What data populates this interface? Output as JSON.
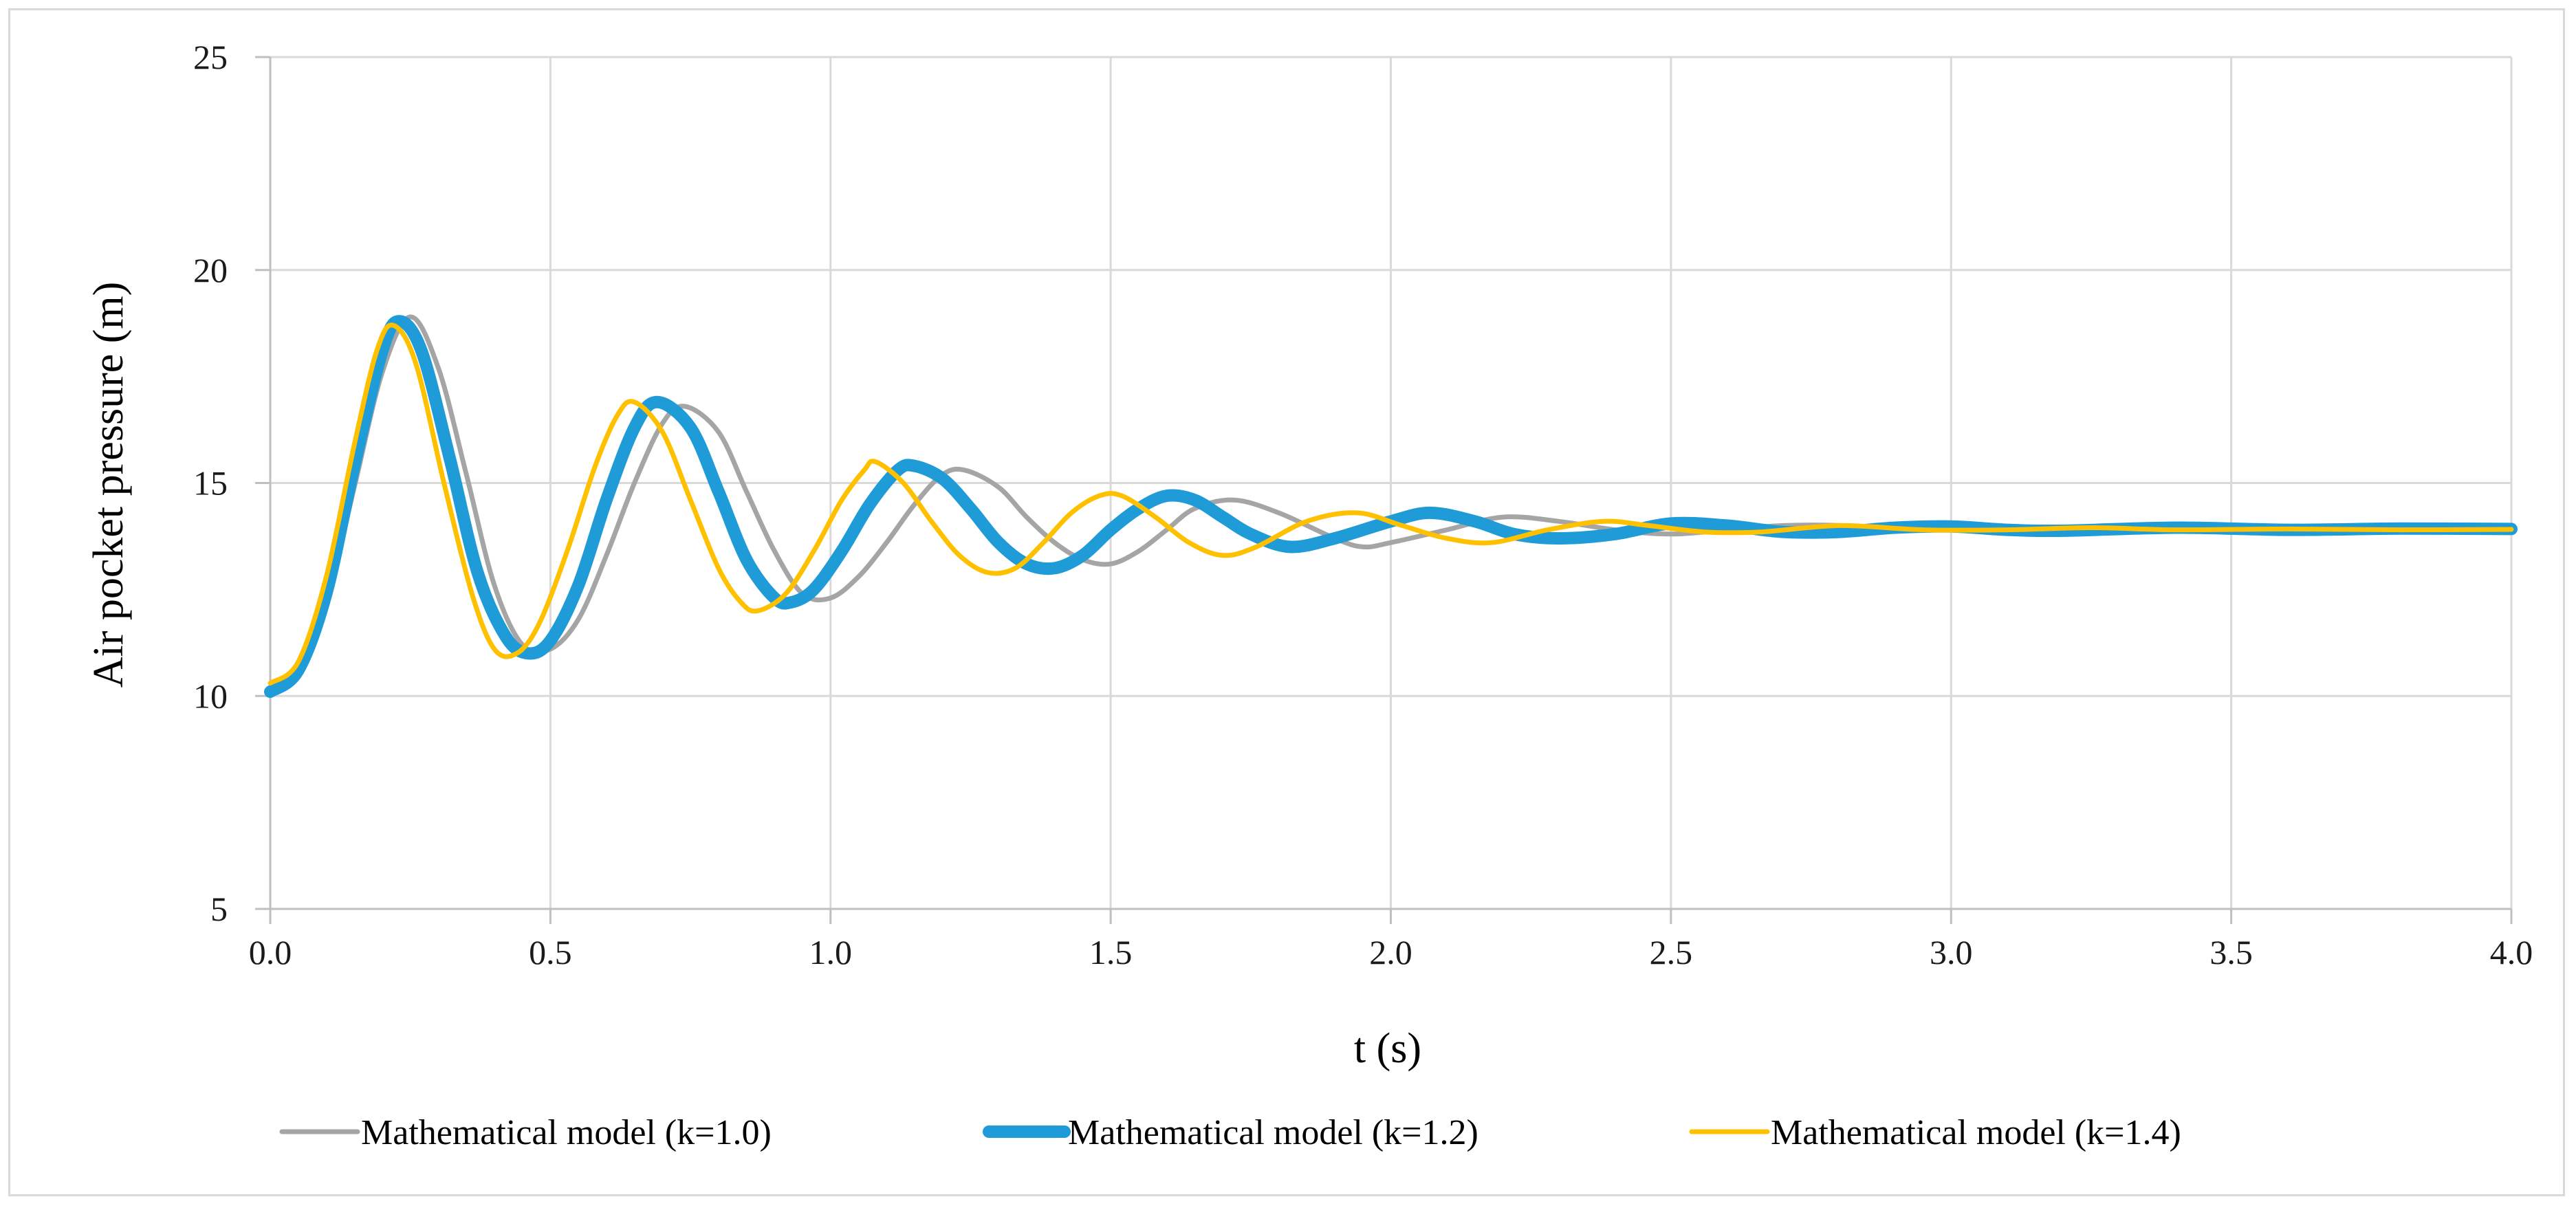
{
  "chart_data": {
    "type": "line",
    "title": "",
    "xlabel": "t (s)",
    "ylabel": "Air pocket pressure (m)",
    "xlim": [
      0.0,
      4.0
    ],
    "ylim": [
      5,
      25
    ],
    "xticks": [
      "0.0",
      "0.5",
      "1.0",
      "1.5",
      "2.0",
      "2.5",
      "3.0",
      "3.5",
      "4.0"
    ],
    "yticks": [
      "5",
      "10",
      "15",
      "20",
      "25"
    ],
    "grid": true,
    "legend_position": "bottom",
    "series": [
      {
        "name": "Mathematical model (k=1.0)",
        "color": "#a5a5a5",
        "points": [
          [
            0.0,
            10.2
          ],
          [
            0.05,
            10.7
          ],
          [
            0.1,
            12.2
          ],
          [
            0.15,
            14.9
          ],
          [
            0.2,
            17.6
          ],
          [
            0.25,
            18.9
          ],
          [
            0.3,
            17.7
          ],
          [
            0.35,
            15.2
          ],
          [
            0.4,
            12.6
          ],
          [
            0.45,
            11.2
          ],
          [
            0.5,
            11.1
          ],
          [
            0.55,
            11.8
          ],
          [
            0.6,
            13.3
          ],
          [
            0.65,
            15.0
          ],
          [
            0.7,
            16.4
          ],
          [
            0.74,
            16.8
          ],
          [
            0.8,
            16.2
          ],
          [
            0.85,
            14.8
          ],
          [
            0.9,
            13.4
          ],
          [
            0.95,
            12.4
          ],
          [
            1.0,
            12.3
          ],
          [
            1.05,
            12.8
          ],
          [
            1.1,
            13.6
          ],
          [
            1.15,
            14.5
          ],
          [
            1.2,
            15.2
          ],
          [
            1.24,
            15.3
          ],
          [
            1.3,
            14.9
          ],
          [
            1.35,
            14.2
          ],
          [
            1.4,
            13.6
          ],
          [
            1.45,
            13.2
          ],
          [
            1.5,
            13.1
          ],
          [
            1.55,
            13.4
          ],
          [
            1.6,
            13.9
          ],
          [
            1.65,
            14.4
          ],
          [
            1.72,
            14.6
          ],
          [
            1.8,
            14.3
          ],
          [
            1.9,
            13.7
          ],
          [
            1.95,
            13.5
          ],
          [
            2.0,
            13.6
          ],
          [
            2.1,
            13.9
          ],
          [
            2.2,
            14.2
          ],
          [
            2.3,
            14.1
          ],
          [
            2.4,
            13.9
          ],
          [
            2.5,
            13.8
          ],
          [
            2.6,
            13.9
          ],
          [
            2.7,
            14.0
          ],
          [
            2.8,
            14.0
          ],
          [
            2.9,
            13.9
          ],
          [
            3.0,
            13.9
          ],
          [
            3.2,
            13.95
          ],
          [
            3.4,
            13.9
          ],
          [
            3.6,
            13.92
          ],
          [
            3.8,
            13.9
          ],
          [
            4.0,
            13.9
          ]
        ]
      },
      {
        "name": "Mathematical model (k=1.2)",
        "color": "#1f9bd7",
        "points": [
          [
            0.0,
            10.1
          ],
          [
            0.05,
            10.6
          ],
          [
            0.1,
            12.4
          ],
          [
            0.15,
            15.4
          ],
          [
            0.2,
            18.1
          ],
          [
            0.23,
            18.8
          ],
          [
            0.27,
            18.1
          ],
          [
            0.32,
            15.6
          ],
          [
            0.37,
            12.9
          ],
          [
            0.42,
            11.4
          ],
          [
            0.46,
            11.0
          ],
          [
            0.5,
            11.3
          ],
          [
            0.55,
            12.6
          ],
          [
            0.6,
            14.6
          ],
          [
            0.65,
            16.3
          ],
          [
            0.69,
            16.9
          ],
          [
            0.75,
            16.3
          ],
          [
            0.8,
            14.8
          ],
          [
            0.85,
            13.2
          ],
          [
            0.9,
            12.3
          ],
          [
            0.93,
            12.2
          ],
          [
            0.97,
            12.5
          ],
          [
            1.02,
            13.4
          ],
          [
            1.07,
            14.5
          ],
          [
            1.12,
            15.3
          ],
          [
            1.15,
            15.4
          ],
          [
            1.2,
            15.1
          ],
          [
            1.25,
            14.4
          ],
          [
            1.3,
            13.6
          ],
          [
            1.35,
            13.1
          ],
          [
            1.4,
            13.0
          ],
          [
            1.45,
            13.3
          ],
          [
            1.5,
            13.9
          ],
          [
            1.55,
            14.4
          ],
          [
            1.6,
            14.7
          ],
          [
            1.65,
            14.6
          ],
          [
            1.7,
            14.2
          ],
          [
            1.75,
            13.8
          ],
          [
            1.82,
            13.5
          ],
          [
            1.9,
            13.7
          ],
          [
            2.0,
            14.1
          ],
          [
            2.07,
            14.3
          ],
          [
            2.15,
            14.1
          ],
          [
            2.22,
            13.8
          ],
          [
            2.3,
            13.7
          ],
          [
            2.4,
            13.8
          ],
          [
            2.5,
            14.05
          ],
          [
            2.6,
            14.0
          ],
          [
            2.7,
            13.85
          ],
          [
            2.8,
            13.85
          ],
          [
            2.9,
            13.95
          ],
          [
            3.0,
            13.98
          ],
          [
            3.1,
            13.9
          ],
          [
            3.2,
            13.88
          ],
          [
            3.4,
            13.95
          ],
          [
            3.6,
            13.9
          ],
          [
            3.8,
            13.93
          ],
          [
            4.0,
            13.92
          ]
        ]
      },
      {
        "name": "Mathematical model (k=1.4)",
        "color": "#ffc000",
        "points": [
          [
            0.0,
            10.3
          ],
          [
            0.05,
            10.8
          ],
          [
            0.1,
            12.8
          ],
          [
            0.15,
            15.9
          ],
          [
            0.19,
            18.1
          ],
          [
            0.22,
            18.7
          ],
          [
            0.26,
            17.8
          ],
          [
            0.31,
            15.0
          ],
          [
            0.36,
            12.4
          ],
          [
            0.4,
            11.1
          ],
          [
            0.44,
            11.0
          ],
          [
            0.48,
            11.7
          ],
          [
            0.53,
            13.4
          ],
          [
            0.58,
            15.4
          ],
          [
            0.62,
            16.6
          ],
          [
            0.65,
            16.9
          ],
          [
            0.7,
            16.2
          ],
          [
            0.75,
            14.6
          ],
          [
            0.8,
            13.0
          ],
          [
            0.84,
            12.2
          ],
          [
            0.87,
            12.0
          ],
          [
            0.92,
            12.4
          ],
          [
            0.97,
            13.4
          ],
          [
            1.02,
            14.6
          ],
          [
            1.06,
            15.3
          ],
          [
            1.08,
            15.5
          ],
          [
            1.13,
            15.0
          ],
          [
            1.18,
            14.1
          ],
          [
            1.23,
            13.3
          ],
          [
            1.28,
            12.9
          ],
          [
            1.33,
            13.0
          ],
          [
            1.38,
            13.6
          ],
          [
            1.43,
            14.3
          ],
          [
            1.48,
            14.7
          ],
          [
            1.52,
            14.7
          ],
          [
            1.58,
            14.2
          ],
          [
            1.64,
            13.6
          ],
          [
            1.7,
            13.3
          ],
          [
            1.76,
            13.5
          ],
          [
            1.85,
            14.1
          ],
          [
            1.94,
            14.3
          ],
          [
            2.02,
            14.0
          ],
          [
            2.1,
            13.7
          ],
          [
            2.18,
            13.6
          ],
          [
            2.28,
            13.9
          ],
          [
            2.38,
            14.1
          ],
          [
            2.46,
            14.0
          ],
          [
            2.56,
            13.85
          ],
          [
            2.66,
            13.85
          ],
          [
            2.8,
            14.0
          ],
          [
            2.95,
            13.9
          ],
          [
            3.1,
            13.9
          ],
          [
            3.25,
            13.95
          ],
          [
            3.4,
            13.9
          ],
          [
            3.6,
            13.92
          ],
          [
            3.8,
            13.9
          ],
          [
            4.0,
            13.91
          ]
        ]
      }
    ]
  }
}
